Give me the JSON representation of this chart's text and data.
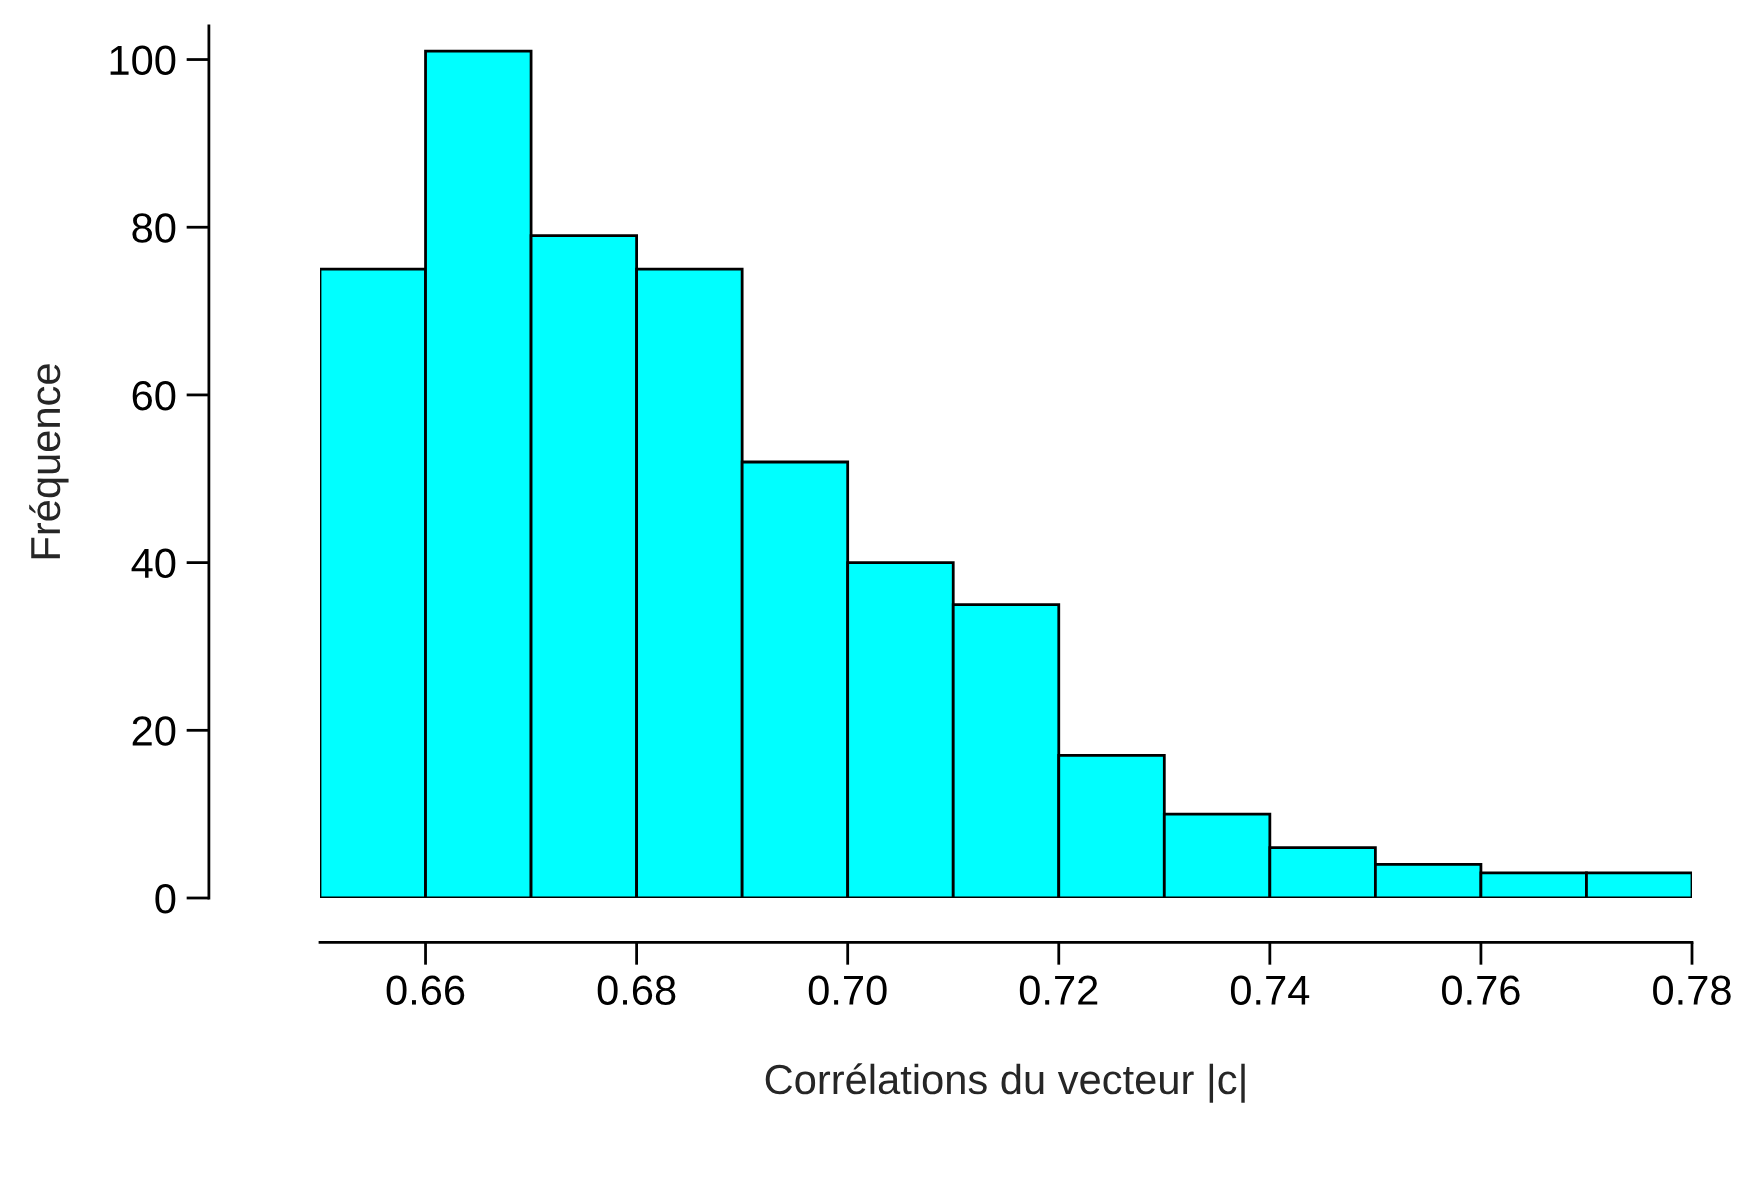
{
  "chart_data": {
    "type": "histogram",
    "xlabel": "Corrélations du vecteur |c|",
    "ylabel": "Fréquence",
    "bins": [
      0.65,
      0.66,
      0.67,
      0.68,
      0.69,
      0.7,
      0.71,
      0.72,
      0.73,
      0.74,
      0.75,
      0.76,
      0.77,
      0.78
    ],
    "values": [
      75,
      101,
      79,
      75,
      52,
      40,
      35,
      17,
      10,
      6,
      4,
      3,
      3
    ],
    "color": "#00ffff",
    "xlim": [
      0.65,
      0.78
    ],
    "ylim": [
      0,
      104
    ],
    "xticks": [
      {
        "value": 0.66,
        "label": "0.66"
      },
      {
        "value": 0.68,
        "label": "0.68"
      },
      {
        "value": 0.7,
        "label": "0.70"
      },
      {
        "value": 0.72,
        "label": "0.72"
      },
      {
        "value": 0.74,
        "label": "0.74"
      },
      {
        "value": 0.76,
        "label": "0.76"
      },
      {
        "value": 0.78,
        "label": "0.78"
      }
    ],
    "yticks": [
      0,
      20,
      40,
      60,
      80,
      100
    ],
    "grid": false
  }
}
